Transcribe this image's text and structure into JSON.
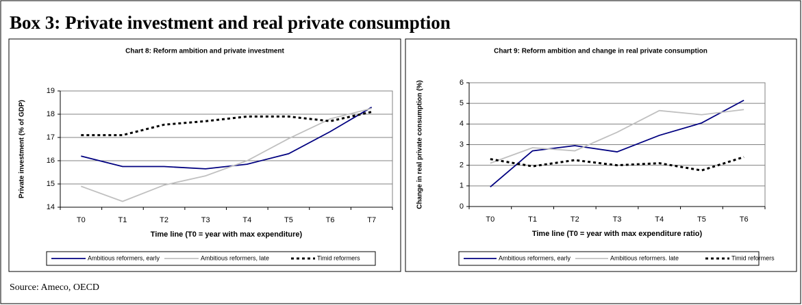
{
  "header": {
    "title": "Box 3: Private investment and real private consumption"
  },
  "source": "Source: Ameco, OECD",
  "chart_data": [
    {
      "type": "line",
      "title": "Chart 8: Reform ambition and private investment",
      "x_label": "Time line (T0 = year with max expenditure)",
      "y_label": "Private investment (% of GDP)",
      "categories": [
        "T0",
        "T1",
        "T2",
        "T3",
        "T4",
        "T5",
        "T6",
        "T7"
      ],
      "ylim": [
        14,
        19
      ],
      "yticks": [
        14,
        15,
        16,
        17,
        18,
        19
      ],
      "grid": true,
      "series": [
        {
          "name": "Ambitious reformers, early",
          "color": "#000080",
          "style": "solid",
          "values": [
            16.2,
            15.75,
            15.75,
            15.65,
            15.85,
            16.3,
            17.25,
            18.3
          ]
        },
        {
          "name": "Ambitious reformers, late",
          "color": "#c0c0c0",
          "style": "solid",
          "values": [
            14.9,
            14.25,
            14.95,
            15.35,
            16.0,
            16.95,
            17.8,
            18.25
          ]
        },
        {
          "name": "Timid reformers",
          "color": "#000000",
          "style": "dashed",
          "values": [
            17.1,
            17.1,
            17.55,
            17.7,
            17.9,
            17.9,
            17.7,
            18.1
          ]
        }
      ]
    },
    {
      "type": "line",
      "title": "Chart 9: Reform ambition and change in real private consumption",
      "x_label": "Time line (T0 = year with max expenditure ratio)",
      "y_label": "Change in real private consumption (%)",
      "categories": [
        "T0",
        "T1",
        "T2",
        "T3",
        "T4",
        "T5",
        "T6"
      ],
      "ylim": [
        0,
        6
      ],
      "yticks": [
        0,
        1,
        2,
        3,
        4,
        5,
        6
      ],
      "grid": true,
      "series": [
        {
          "name": "Ambitious reformers, early",
          "color": "#000080",
          "style": "solid",
          "values": [
            0.95,
            2.7,
            2.95,
            2.65,
            3.45,
            4.05,
            5.15
          ]
        },
        {
          "name": "Ambitious reformers. late",
          "color": "#c0c0c0",
          "style": "solid",
          "values": [
            2.1,
            2.85,
            2.7,
            3.6,
            4.65,
            4.45,
            4.7
          ]
        },
        {
          "name": "Timid reformers",
          "color": "#000000",
          "style": "dashed",
          "values": [
            2.3,
            1.95,
            2.25,
            2.0,
            2.1,
            1.75,
            2.4
          ]
        }
      ]
    }
  ]
}
